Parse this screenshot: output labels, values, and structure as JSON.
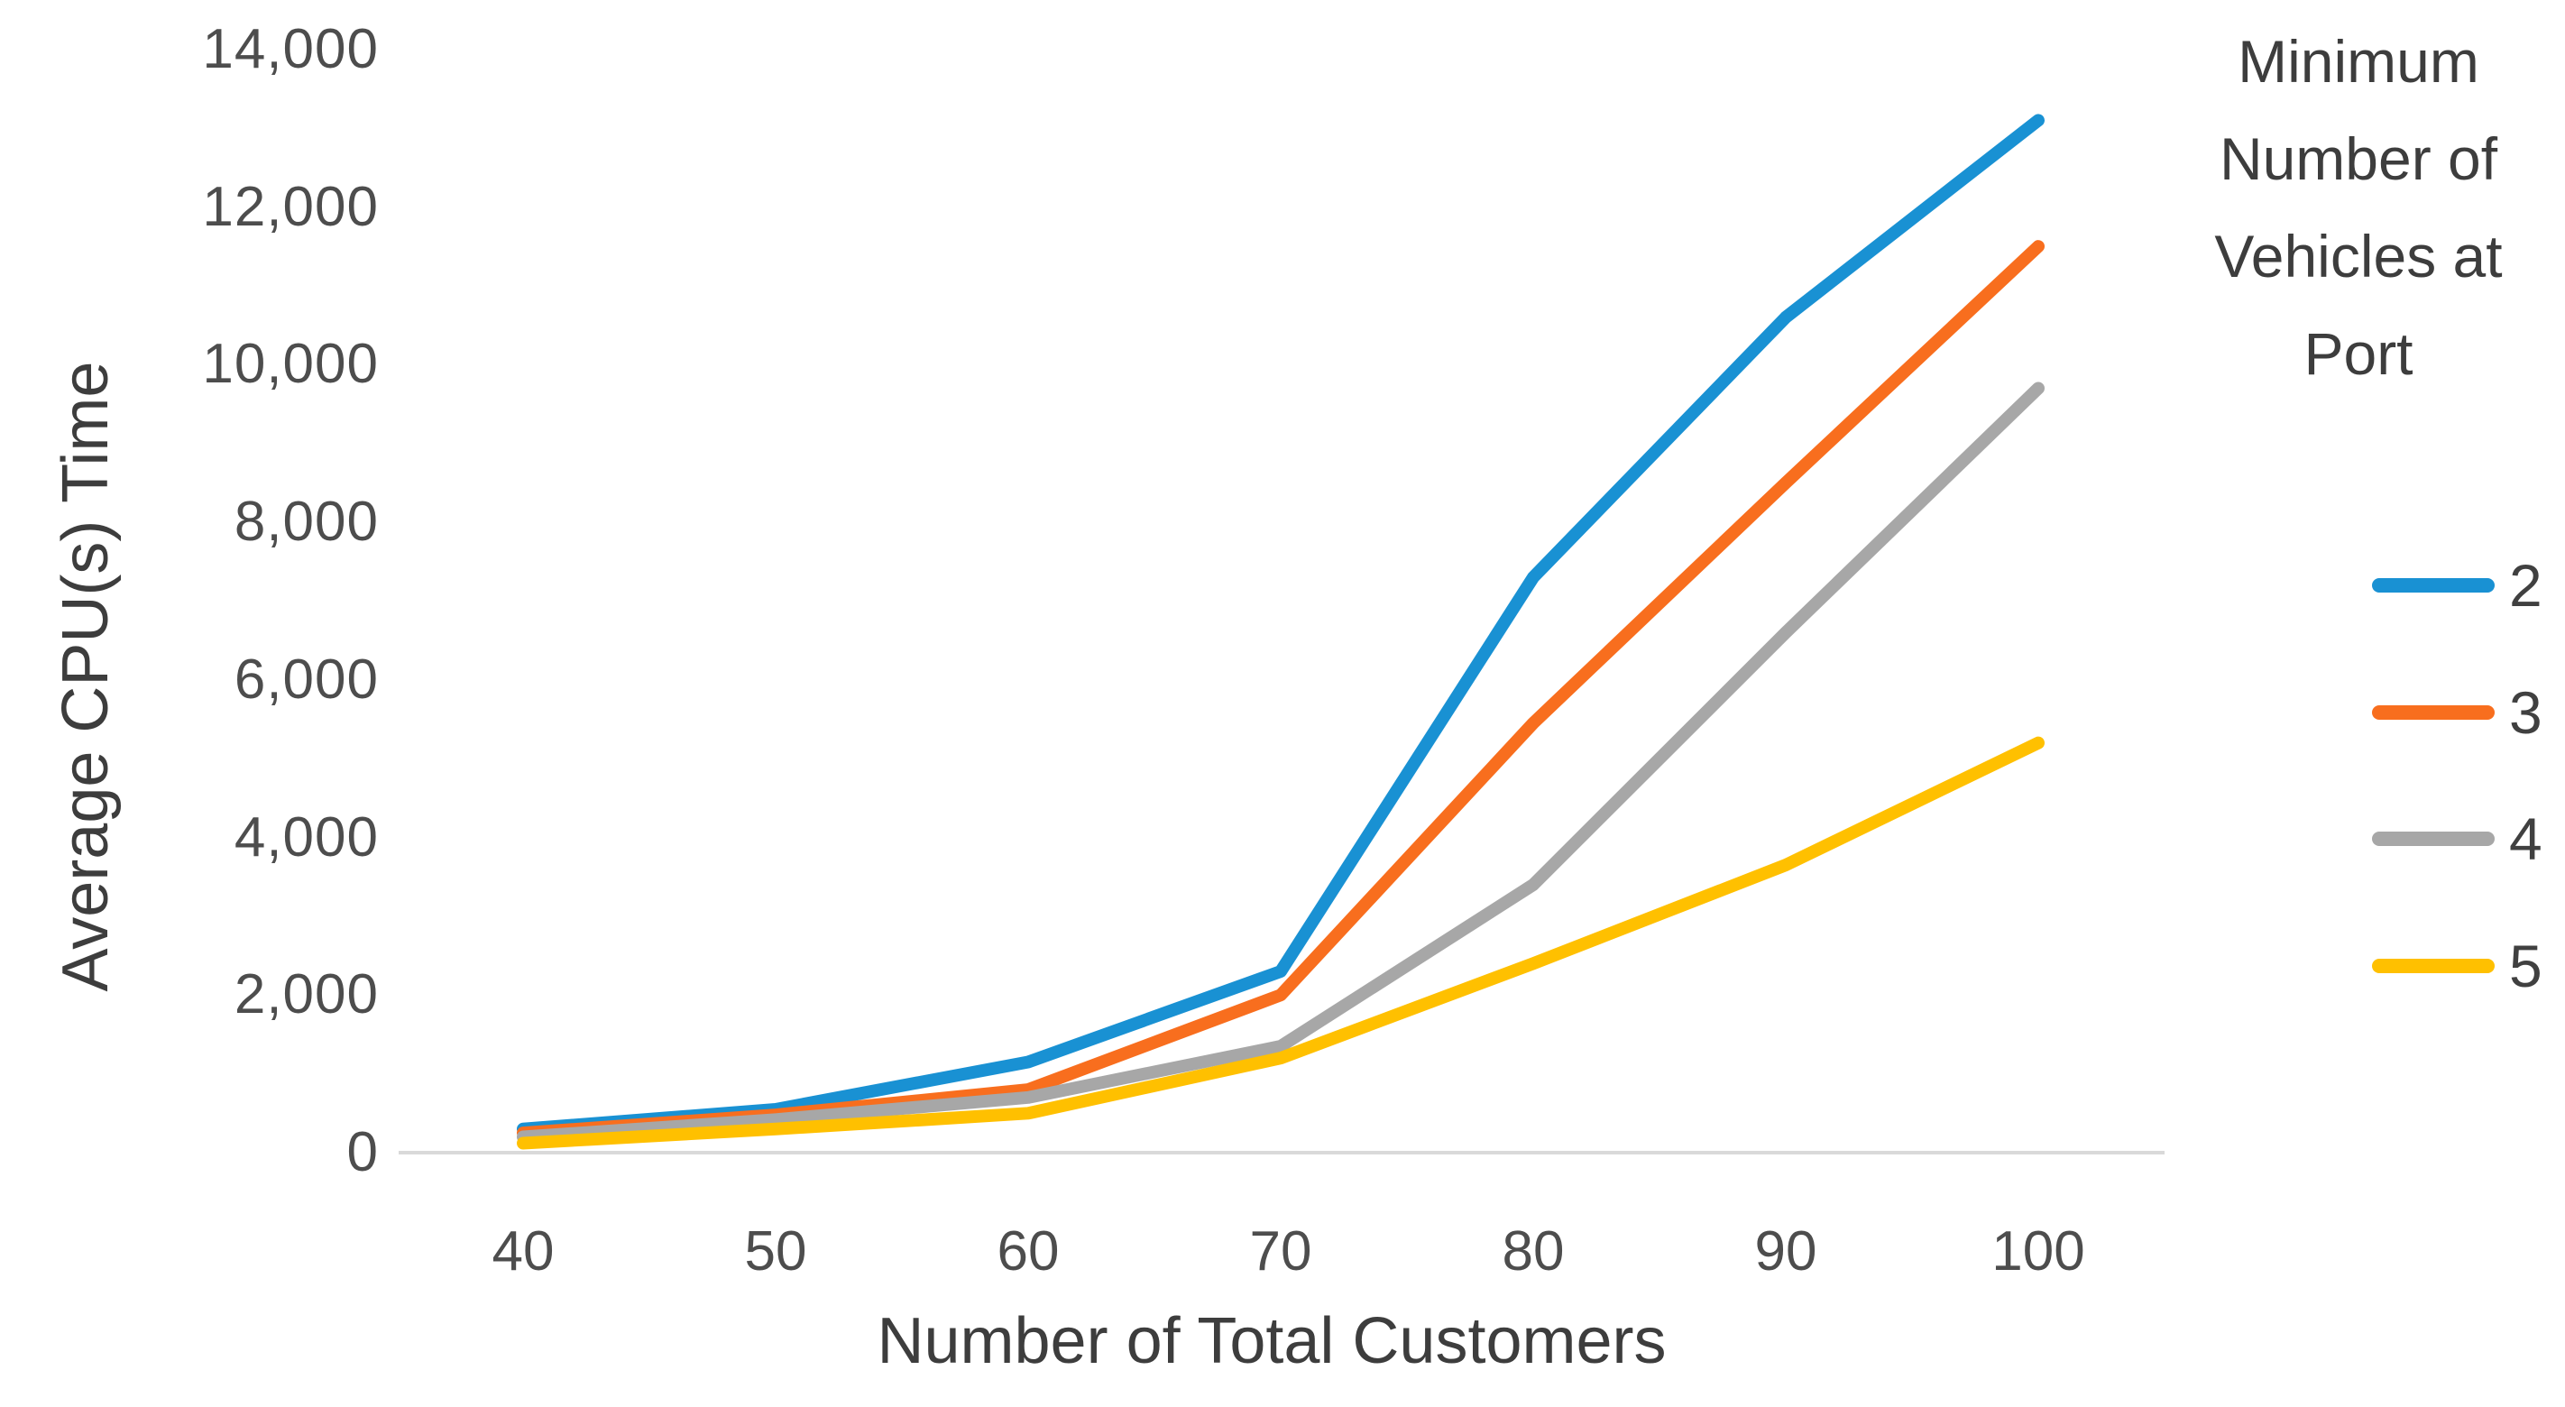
{
  "chart_data": {
    "type": "line",
    "title": "",
    "xlabel": "Number of Total Customers",
    "ylabel": "Average CPU(s) Time",
    "categories": [
      40,
      50,
      60,
      70,
      80,
      90,
      100
    ],
    "x_tick_labels": [
      "40",
      "50",
      "60",
      "70",
      "80",
      "90",
      "100"
    ],
    "y_ticks": [
      {
        "label": "0",
        "value": 0
      },
      {
        "label": "2,000",
        "value": 2000
      },
      {
        "label": "4,000",
        "value": 4000
      },
      {
        "label": "6,000",
        "value": 6000
      },
      {
        "label": "8,000",
        "value": 8000
      },
      {
        "label": "10,000",
        "value": 10000
      },
      {
        "label": "12,000",
        "value": 12000
      },
      {
        "label": "14,000",
        "value": 14000
      }
    ],
    "ylim": [
      0,
      14000
    ],
    "grid": false,
    "legend_position": "right",
    "legend_title": "Minimum\nNumber of\nVehicles at\nPort",
    "series": [
      {
        "name": "2",
        "color": "#1991D3",
        "values": [
          300,
          550,
          1150,
          2300,
          7300,
          10600,
          13100
        ]
      },
      {
        "name": "3",
        "color": "#F86E1E",
        "values": [
          250,
          480,
          800,
          2000,
          5450,
          8500,
          11500
        ]
      },
      {
        "name": "4",
        "color": "#A7A7A7",
        "values": [
          200,
          420,
          700,
          1350,
          3400,
          6600,
          9700
        ]
      },
      {
        "name": "5",
        "color": "#FFC000",
        "values": [
          120,
          300,
          500,
          1200,
          2400,
          3650,
          5200
        ]
      }
    ],
    "axis_line_color": "#D9D9D9",
    "text_color": "#404040"
  }
}
